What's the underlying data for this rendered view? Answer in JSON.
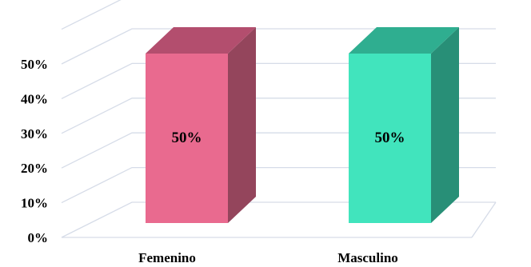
{
  "chart_data": {
    "type": "bar",
    "style": "3d-column",
    "categories": [
      "Femenino",
      "Masculino"
    ],
    "values": [
      50,
      50
    ],
    "data_labels": [
      "50%",
      "50%"
    ],
    "y_tick_labels": [
      "0%",
      "10%",
      "20%",
      "30%",
      "40%",
      "50%"
    ],
    "y_ticks": [
      0,
      10,
      20,
      30,
      40,
      50
    ],
    "ylim": [
      0,
      60
    ],
    "grid": true,
    "title": "",
    "xlabel": "",
    "ylabel": "",
    "colors": {
      "front": [
        "#e96a8f",
        "#41e4bd"
      ],
      "side": [
        "#94455c",
        "#288f77"
      ],
      "top": [
        "#b34e6e",
        "#2fae90"
      ],
      "grid": "#d6dce8"
    }
  }
}
